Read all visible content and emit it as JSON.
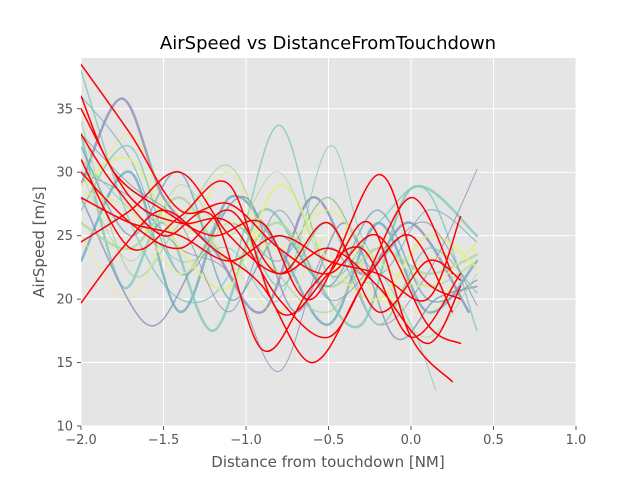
{
  "chart_data": {
    "type": "line",
    "title": "AirSpeed vs DistanceFromTouchdown",
    "xlabel": "Distance from touchdown [NM]",
    "ylabel": "AirSpeed [m/s]",
    "xlim": [
      -2.0,
      1.0
    ],
    "ylim": [
      10,
      39
    ],
    "xticks": [
      -2.0,
      -1.5,
      -1.0,
      -0.5,
      0.0,
      0.5,
      1.0
    ],
    "xtick_labels": [
      "−2.0",
      "−1.5",
      "−1.0",
      "−0.5",
      "0.0",
      "0.5",
      "1.0"
    ],
    "yticks": [
      10,
      15,
      20,
      25,
      30,
      35
    ],
    "ytick_labels": [
      "10",
      "15",
      "20",
      "25",
      "30",
      "35"
    ],
    "grid": true,
    "legend": "none",
    "style": {
      "background": "#e5e5e5",
      "grid_color": "#ffffff",
      "highlight_color": "#ff0000"
    },
    "series": [
      {
        "color": "#ff0000",
        "width": 1.5,
        "x": [
          -2.0,
          -1.7,
          -1.4,
          -1.1,
          -0.8,
          -0.5,
          -0.2,
          0.1,
          0.3
        ],
        "y": [
          38.5,
          33.0,
          27.0,
          27.5,
          24.0,
          22.0,
          25.0,
          18.0,
          16.5
        ]
      },
      {
        "color": "#ff0000",
        "width": 1.5,
        "x": [
          -2.0,
          -1.75,
          -1.5,
          -1.2,
          -0.9,
          -0.6,
          -0.3,
          0.0,
          0.25
        ],
        "y": [
          19.7,
          24.0,
          27.0,
          24.0,
          21.0,
          15.0,
          21.0,
          28.0,
          22.0
        ]
      },
      {
        "color": "#ff0000",
        "width": 1.5,
        "x": [
          -2.0,
          -1.8,
          -1.5,
          -1.2,
          -0.9,
          -0.6,
          -0.2,
          0.05,
          0.3
        ],
        "y": [
          36.0,
          30.0,
          27.0,
          25.0,
          26.0,
          20.0,
          29.8,
          22.0,
          20.0
        ]
      },
      {
        "color": "#ff0000",
        "width": 1.5,
        "x": [
          -2.0,
          -1.8,
          -1.5,
          -1.2,
          -0.9,
          -0.6,
          -0.3,
          0.0,
          0.3
        ],
        "y": [
          33.0,
          29.0,
          25.0,
          26.5,
          16.0,
          21.0,
          24.0,
          17.0,
          22.0
        ]
      },
      {
        "color": "#ff0000",
        "width": 1.5,
        "x": [
          -2.0,
          -1.7,
          -1.4,
          -1.1,
          -0.8,
          -0.5,
          -0.2,
          0.1,
          0.3
        ],
        "y": [
          28.0,
          26.0,
          25.0,
          23.0,
          25.0,
          23.0,
          22.0,
          20.0,
          26.5
        ]
      },
      {
        "color": "#ff0000",
        "width": 1.5,
        "x": [
          -2.0,
          -1.7,
          -1.4,
          -1.1,
          -0.8,
          -0.5,
          -0.25,
          0.0,
          0.25
        ],
        "y": [
          35.0,
          28.0,
          26.0,
          26.0,
          20.0,
          17.0,
          22.0,
          25.0,
          19.0
        ]
      },
      {
        "color": "#ff0000",
        "width": 1.5,
        "x": [
          -2.0,
          -1.7,
          -1.4,
          -1.1,
          -0.8,
          -0.5,
          -0.2,
          0.1,
          0.3
        ],
        "y": [
          24.5,
          27.0,
          30.0,
          25.0,
          22.0,
          24.0,
          21.0,
          16.5,
          21.0
        ]
      },
      {
        "color": "#ff0000",
        "width": 1.5,
        "x": [
          -2.0,
          -1.7,
          -1.4,
          -1.1,
          -0.8,
          -0.5,
          -0.2,
          0.1,
          0.3
        ],
        "y": [
          30.0,
          26.0,
          24.0,
          27.0,
          22.0,
          26.0,
          19.0,
          23.0,
          21.5
        ]
      },
      {
        "color": "#ff0000",
        "width": 1.5,
        "x": [
          -2.0,
          -1.7,
          -1.4,
          -1.1,
          -0.8,
          -0.5,
          -0.25,
          0.0,
          0.25
        ],
        "y": [
          31.0,
          24.0,
          26.5,
          29.0,
          19.0,
          22.0,
          26.0,
          17.0,
          13.5
        ]
      },
      {
        "color": "#7fc9b8",
        "width": 1.5,
        "x": [
          -2.0,
          -1.7,
          -1.4,
          -1.1,
          -0.8,
          -0.5,
          -0.2,
          0.1,
          0.4
        ],
        "y": [
          38.0,
          26.0,
          20.0,
          22.0,
          33.7,
          22.0,
          26.0,
          28.5,
          17.5
        ]
      },
      {
        "color": "#8a8fb5",
        "width": 2.5,
        "x": [
          -2.0,
          -1.75,
          -1.5,
          -1.2,
          -0.9,
          -0.6,
          -0.3,
          0.0,
          0.35
        ],
        "y": [
          29.0,
          35.8,
          28.0,
          24.0,
          19.0,
          28.0,
          22.0,
          26.0,
          19.0
        ]
      },
      {
        "color": "#e3ee8a",
        "width": 1.5,
        "x": [
          -2.0,
          -1.7,
          -1.4,
          -1.1,
          -0.8,
          -0.5,
          -0.2,
          0.1,
          0.4
        ],
        "y": [
          27.0,
          33.0,
          25.0,
          30.0,
          22.0,
          28.0,
          20.0,
          23.0,
          24.0
        ]
      },
      {
        "color": "#6fa9bd",
        "width": 2.5,
        "x": [
          -2.0,
          -1.7,
          -1.4,
          -1.1,
          -0.8,
          -0.5,
          -0.2,
          0.1,
          0.4
        ],
        "y": [
          23.0,
          30.0,
          19.0,
          28.0,
          24.0,
          18.0,
          26.0,
          19.0,
          23.0
        ]
      },
      {
        "color": "#7fc9b8",
        "width": 2.5,
        "x": [
          -2.0,
          -1.75,
          -1.5,
          -1.2,
          -0.9,
          -0.6,
          -0.3,
          0.0,
          0.4
        ],
        "y": [
          33.0,
          21.0,
          26.0,
          17.5,
          27.0,
          22.0,
          18.0,
          28.7,
          25.0
        ]
      },
      {
        "color": "#8a8fb5",
        "width": 1.0,
        "x": [
          -2.0,
          -1.7,
          -1.4,
          -1.1,
          -0.8,
          -0.5,
          -0.2,
          0.1,
          0.4
        ],
        "y": [
          30.0,
          28.0,
          24.0,
          22.0,
          14.3,
          24.0,
          18.0,
          22.0,
          30.2
        ]
      },
      {
        "color": "#aed79e",
        "width": 1.5,
        "x": [
          -2.0,
          -1.7,
          -1.4,
          -1.1,
          -0.8,
          -0.5,
          -0.2,
          0.1,
          0.4
        ],
        "y": [
          34.0,
          22.0,
          26.0,
          30.5,
          22.0,
          19.0,
          24.0,
          21.0,
          23.0
        ]
      },
      {
        "color": "#e3ee8a",
        "width": 1.0,
        "x": [
          -2.0,
          -1.7,
          -1.4,
          -1.1,
          -0.8,
          -0.5,
          -0.2,
          0.1,
          0.4
        ],
        "y": [
          25.0,
          20.0,
          27.0,
          23.0,
          19.0,
          25.0,
          21.0,
          19.0,
          24.0
        ]
      },
      {
        "color": "#7fc9b8",
        "width": 1.0,
        "x": [
          -2.0,
          -1.7,
          -1.4,
          -1.1,
          -0.8,
          -0.5,
          -0.3,
          0.0,
          0.15
        ],
        "y": [
          31.0,
          27.0,
          23.0,
          24.0,
          20.0,
          32.0,
          25.0,
          18.0,
          12.8
        ]
      },
      {
        "color": "#8a8fb5",
        "width": 1.5,
        "x": [
          -2.0,
          -1.6,
          -1.3,
          -1.0,
          -0.7,
          -0.4,
          -0.1,
          0.15,
          0.4
        ],
        "y": [
          28.0,
          18.0,
          23.0,
          28.0,
          19.0,
          26.0,
          17.0,
          20.0,
          21.0
        ]
      },
      {
        "color": "#6fa9bd",
        "width": 1.0,
        "x": [
          -2.0,
          -1.7,
          -1.4,
          -1.1,
          -0.8,
          -0.5,
          -0.2,
          0.1,
          0.4
        ],
        "y": [
          36.0,
          31.0,
          22.0,
          26.0,
          23.0,
          28.0,
          22.0,
          27.0,
          24.5
        ]
      },
      {
        "color": "#aed79e",
        "width": 2.5,
        "x": [
          -2.0,
          -1.7,
          -1.4,
          -1.1,
          -0.8,
          -0.5,
          -0.2,
          0.1,
          0.4
        ],
        "y": [
          26.0,
          24.0,
          28.0,
          23.0,
          26.0,
          21.0,
          24.0,
          22.0,
          23.5
        ]
      },
      {
        "color": "#e3ee8a",
        "width": 2.5,
        "x": [
          -2.0,
          -1.7,
          -1.4,
          -1.1,
          -0.8,
          -0.5,
          -0.2,
          0.1,
          0.4
        ],
        "y": [
          29.0,
          31.0,
          24.0,
          21.0,
          29.0,
          23.0,
          20.0,
          25.0,
          22.5
        ]
      },
      {
        "color": "#6fa9bd",
        "width": 1.5,
        "x": [
          -2.0,
          -1.7,
          -1.4,
          -1.1,
          -0.8,
          -0.5,
          -0.2,
          0.1,
          0.4
        ],
        "y": [
          32.0,
          25.0,
          30.0,
          20.0,
          25.0,
          21.0,
          27.0,
          20.0,
          21.5
        ]
      },
      {
        "color": "#7fc9b8",
        "width": 1.5,
        "x": [
          -2.0,
          -1.7,
          -1.4,
          -1.1,
          -0.8,
          -0.5,
          -0.2,
          0.1,
          0.4
        ],
        "y": [
          27.0,
          32.0,
          22.0,
          27.0,
          21.0,
          26.0,
          18.0,
          24.0,
          20.5
        ]
      },
      {
        "color": "#8a8fb5",
        "width": 1.0,
        "x": [
          -2.0,
          -1.7,
          -1.4,
          -1.1,
          -0.8,
          -0.5,
          -0.2,
          0.1,
          0.4
        ],
        "y": [
          33.0,
          29.0,
          26.0,
          19.0,
          27.0,
          20.0,
          23.0,
          26.0,
          19.5
        ]
      },
      {
        "color": "#aed79e",
        "width": 1.0,
        "x": [
          -2.0,
          -1.7,
          -1.4,
          -1.1,
          -0.8,
          -0.5,
          -0.2,
          0.1,
          0.4
        ],
        "y": [
          30.0,
          23.0,
          29.0,
          25.0,
          30.0,
          22.0,
          21.0,
          17.0,
          22.0
        ]
      },
      {
        "color": "#e3ee8a",
        "width": 1.5,
        "x": [
          -2.0,
          -1.7,
          -1.4,
          -1.1,
          -0.8,
          -0.5,
          -0.2,
          0.1,
          0.4
        ],
        "y": [
          28.5,
          27.0,
          22.0,
          26.0,
          24.0,
          27.0,
          23.0,
          21.0,
          24.5
        ]
      }
    ]
  }
}
